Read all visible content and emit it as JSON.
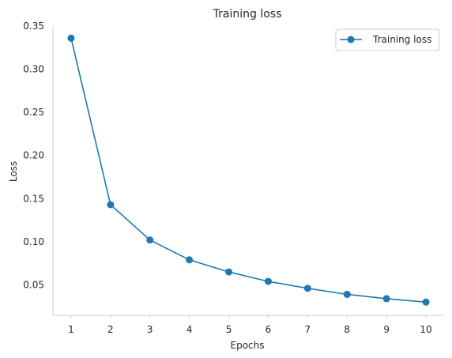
{
  "chart_data": {
    "type": "line",
    "title": "Training  loss",
    "xlabel": "Epochs",
    "ylabel": "Loss",
    "x": [
      1,
      2,
      3,
      4,
      5,
      6,
      7,
      8,
      9,
      10
    ],
    "series": [
      {
        "name": "Training loss",
        "values": [
          0.336,
          0.143,
          0.102,
          0.079,
          0.065,
          0.054,
          0.046,
          0.039,
          0.034,
          0.03
        ],
        "color": "#1f77b4",
        "marker": "circle"
      }
    ],
    "xticks": [
      "1",
      "2",
      "3",
      "4",
      "5",
      "6",
      "7",
      "8",
      "9",
      "10"
    ],
    "yticks": [
      "0.05",
      "0.10",
      "0.15",
      "0.20",
      "0.25",
      "0.30",
      "0.35"
    ],
    "ylim": [
      0.0147,
      0.35
    ],
    "xlim": [
      0.54,
      10.46
    ],
    "grid": false,
    "legend_position": "top-right"
  }
}
